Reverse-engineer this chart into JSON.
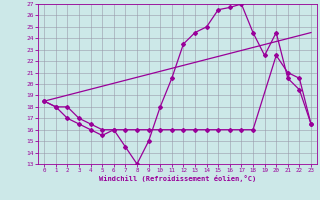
{
  "xlabel": "Windchill (Refroidissement éolien,°C)",
  "background_color": "#cce8e8",
  "line_color": "#990099",
  "grid_color": "#9999aa",
  "xlim": [
    -0.5,
    23.5
  ],
  "ylim": [
    13,
    27
  ],
  "yticks": [
    13,
    14,
    15,
    16,
    17,
    18,
    19,
    20,
    21,
    22,
    23,
    24,
    25,
    26,
    27
  ],
  "xticks": [
    0,
    1,
    2,
    3,
    4,
    5,
    6,
    7,
    8,
    9,
    10,
    11,
    12,
    13,
    14,
    15,
    16,
    17,
    18,
    19,
    20,
    21,
    22,
    23
  ],
  "line1_x": [
    0,
    1,
    2,
    3,
    4,
    5,
    6,
    7,
    8,
    9,
    10,
    11,
    12,
    13,
    14,
    15,
    16,
    17,
    18,
    19,
    20,
    21,
    22,
    23
  ],
  "line1_y": [
    18.5,
    18.0,
    17.0,
    16.5,
    16.0,
    15.5,
    16.0,
    14.5,
    13.0,
    15.0,
    18.0,
    20.5,
    23.5,
    24.5,
    25.0,
    26.5,
    26.7,
    27.0,
    24.5,
    22.5,
    24.5,
    20.5,
    19.5,
    16.5
  ],
  "line2_x": [
    0,
    1,
    2,
    3,
    4,
    5,
    6,
    7,
    8,
    9,
    10,
    11,
    12,
    13,
    14,
    15,
    16,
    17,
    18,
    20,
    21,
    22,
    23
  ],
  "line2_y": [
    18.5,
    18.0,
    18.0,
    17.0,
    16.5,
    16.0,
    16.0,
    16.0,
    16.0,
    16.0,
    16.0,
    16.0,
    16.0,
    16.0,
    16.0,
    16.0,
    16.0,
    16.0,
    16.0,
    22.5,
    21.0,
    20.5,
    16.5
  ],
  "line3_x": [
    0,
    23
  ],
  "line3_y": [
    18.5,
    24.5
  ],
  "marker": "D",
  "markersize": 2.0,
  "linewidth": 0.9
}
